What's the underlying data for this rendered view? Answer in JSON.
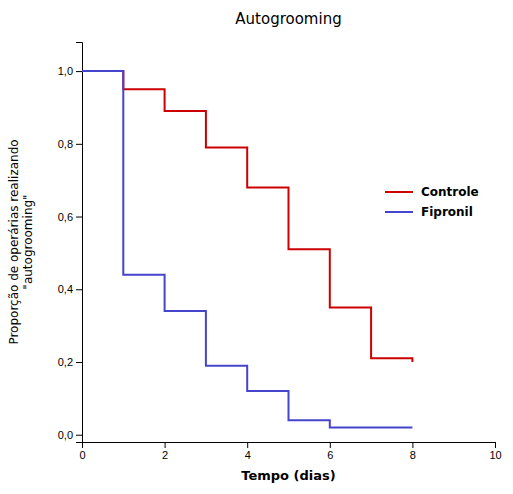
{
  "chart_data": {
    "type": "line",
    "title": "Autogrooming",
    "xlabel": "Tempo (dias)",
    "ylabel": "Proporção de operárias realizando\n\"autogrooming\"",
    "x": [
      0,
      1,
      1,
      2,
      2,
      3,
      3,
      4,
      4,
      5,
      5,
      6,
      6,
      7,
      7,
      8,
      8
    ],
    "series": [
      {
        "name": "Controle",
        "color": "#cc0000",
        "values": [
          1.0,
          1.0,
          0.95,
          0.95,
          0.89,
          0.89,
          0.79,
          0.79,
          0.68,
          0.68,
          0.51,
          0.51,
          0.35,
          0.35,
          0.21,
          0.21,
          0.2
        ]
      },
      {
        "name": "Fipronil",
        "color": "#4444cc",
        "values": [
          1.0,
          1.0,
          0.44,
          0.44,
          0.34,
          0.34,
          0.19,
          0.19,
          0.12,
          0.12,
          0.04,
          0.04,
          0.02,
          0.02,
          0.02,
          0.02,
          0.02
        ]
      }
    ],
    "xlim": [
      0,
      10
    ],
    "ylim": [
      -0.02,
      1.08
    ],
    "xticks": [
      0,
      2,
      4,
      6,
      8,
      10
    ],
    "yticks": [
      {
        "value": 0.0,
        "label": "0,0"
      },
      {
        "value": 0.2,
        "label": "0,2"
      },
      {
        "value": 0.4,
        "label": "0,4"
      },
      {
        "value": 0.6,
        "label": "0,6"
      },
      {
        "value": 0.8,
        "label": "0,8"
      },
      {
        "value": 1.0,
        "label": "1,0"
      }
    ],
    "grid": false,
    "legend": "right"
  }
}
